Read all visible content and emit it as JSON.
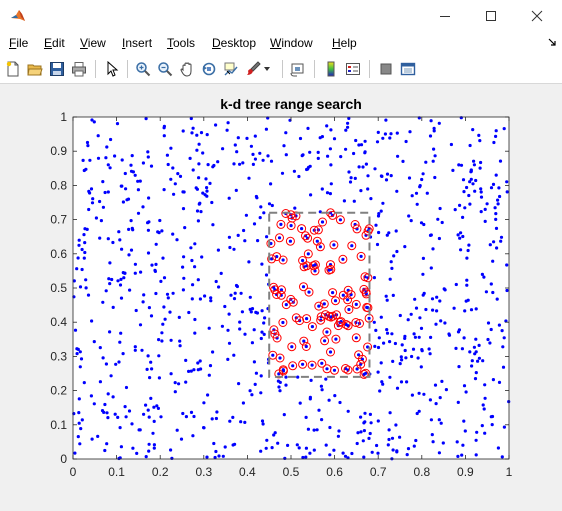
{
  "window": {
    "title": ""
  },
  "menu": {
    "items": [
      {
        "accel": "F",
        "rest": "ile"
      },
      {
        "accel": "E",
        "rest": "dit"
      },
      {
        "accel": "V",
        "rest": "iew"
      },
      {
        "accel": "I",
        "rest": "nsert"
      },
      {
        "accel": "T",
        "rest": "ools"
      },
      {
        "accel": "D",
        "rest": "esktop"
      },
      {
        "accel": "W",
        "rest": "indow"
      },
      {
        "accel": "H",
        "rest": "elp"
      }
    ]
  },
  "toolbar": {
    "icons": [
      "new-figure-icon",
      "open-file-icon",
      "save-icon",
      "print-icon",
      "pointer-icon",
      "zoom-in-icon",
      "zoom-out-icon",
      "pan-icon",
      "rotate-3d-icon",
      "data-cursor-icon",
      "brush-icon",
      "link-plot-icon",
      "insert-colorbar-icon",
      "insert-legend-icon",
      "hide-plot-tools-icon",
      "show-plot-tools-icon"
    ]
  },
  "chart_data": {
    "type": "scatter",
    "title": "k-d tree range search",
    "xlabel": "",
    "ylabel": "",
    "xlim": [
      0,
      1
    ],
    "ylim": [
      0,
      1
    ],
    "xticks": [
      "0",
      "0.1",
      "0.2",
      "0.3",
      "0.4",
      "0.5",
      "0.6",
      "0.7",
      "0.8",
      "0.9",
      "1"
    ],
    "yticks": [
      "0",
      "0.1",
      "0.2",
      "0.3",
      "0.4",
      "0.5",
      "0.6",
      "0.7",
      "0.8",
      "0.9",
      "1"
    ],
    "grid": false,
    "point_count_approx": 1000,
    "point_color": "#0000ff",
    "highlight_color": "#ff0000",
    "search_box": {
      "x": [
        0.45,
        0.68
      ],
      "y": [
        0.24,
        0.72
      ],
      "color": "#808080"
    }
  }
}
